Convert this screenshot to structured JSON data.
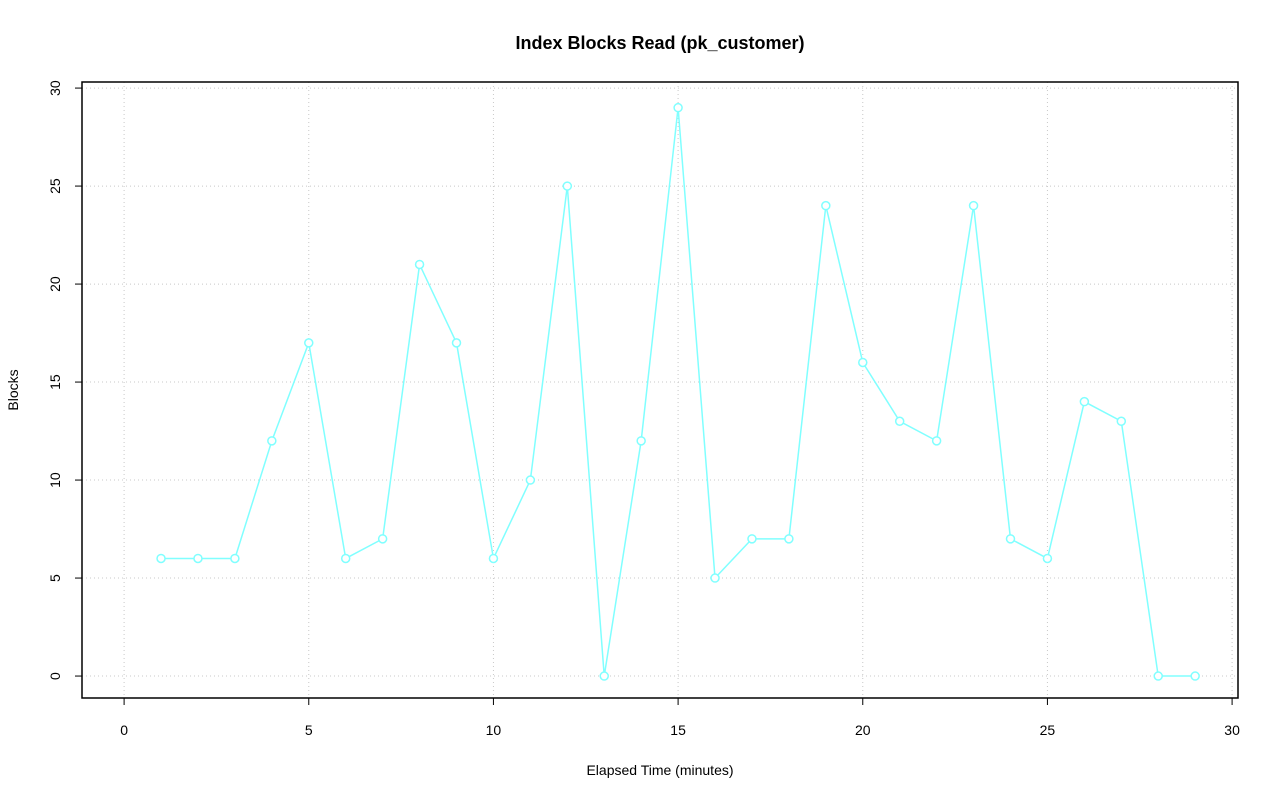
{
  "chart_data": {
    "type": "line",
    "title": "Index Blocks Read (pk_customer)",
    "x_label": "Elapsed Time (minutes)",
    "y_label": "Blocks",
    "x": [
      1,
      2,
      3,
      4,
      5,
      6,
      7,
      8,
      9,
      10,
      11,
      12,
      13,
      14,
      15,
      16,
      17,
      18,
      19,
      20,
      21,
      22,
      23,
      24,
      25,
      26,
      27,
      28,
      29
    ],
    "values": [
      6,
      6,
      6,
      12,
      17,
      6,
      7,
      21,
      17,
      6,
      10,
      25,
      0,
      12,
      29,
      5,
      7,
      7,
      24,
      16,
      13,
      12,
      24,
      7,
      6,
      14,
      13,
      0,
      0
    ],
    "color": "#80ffff",
    "xlim": [
      -1.14,
      30.16
    ],
    "ylim": [
      -1.12,
      30.31
    ],
    "xticks": [
      0,
      5,
      10,
      15,
      20,
      25,
      30
    ],
    "yticks": [
      0,
      5,
      10,
      15,
      20,
      25,
      30
    ],
    "grid": true
  }
}
